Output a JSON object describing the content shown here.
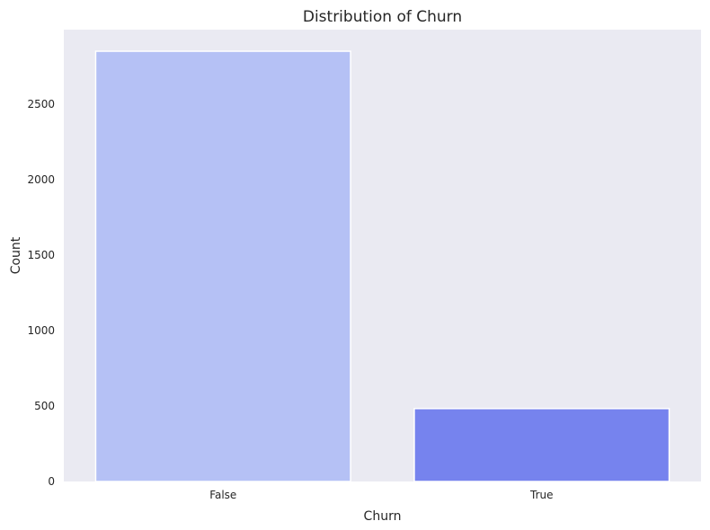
{
  "chart_data": {
    "type": "bar",
    "title": "Distribution of Churn",
    "xlabel": "Churn",
    "ylabel": "Count",
    "categories": [
      "False",
      "True"
    ],
    "values": [
      2850,
      483
    ],
    "ylim": [
      0,
      2993
    ],
    "yticks": [
      0,
      500,
      1000,
      1500,
      2000,
      2500
    ],
    "grid": false,
    "colors": [
      "#b5c1f5",
      "#7683ee"
    ],
    "background": "#eaeaf2"
  }
}
